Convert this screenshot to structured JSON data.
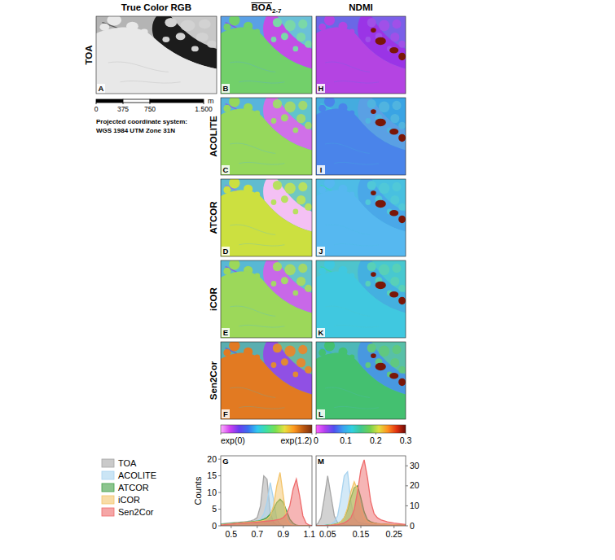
{
  "figure": {
    "column_headers": [
      "True Color RGB",
      {
        "text": "BOA",
        "subscript": "2-7"
      },
      "NDMI"
    ],
    "row_labels": [
      "TOA",
      "ACOLITE",
      "ATCOR",
      "iCOR",
      "Sen2Cor"
    ],
    "panels": {
      "rgb": [
        "A"
      ],
      "boa": [
        "B",
        "C",
        "D",
        "E",
        "F"
      ],
      "ndmi": [
        "H",
        "I",
        "J",
        "K",
        "L"
      ],
      "hist": [
        "G",
        "M"
      ]
    },
    "scale_bar": {
      "unit": "m",
      "range": [
        0,
        1500
      ],
      "ticks": [
        0,
        375,
        750,
        {
          "value": 1500,
          "label": "1.500"
        }
      ]
    },
    "projection": [
      "Projected coordinate system:",
      "WGS 1984 UTM Zone 31N"
    ],
    "colorbars": [
      {
        "range": [
          0,
          1.2
        ],
        "ticks": [
          {
            "value": 0,
            "label": "exp(0)"
          },
          {
            "value": 1.2,
            "label": "exp(1.2)"
          }
        ],
        "colors": [
          "#ffb0ff",
          "#d040f0",
          "#6a3cf0",
          "#3a70f0",
          "#30c8f0",
          "#40e0a0",
          "#7ae050",
          "#e8e040",
          "#ff9a20",
          "#c05a10",
          "#7a3010"
        ]
      },
      {
        "range": [
          0,
          0.3
        ],
        "ticks": [
          0,
          0.1,
          0.2,
          0.3
        ],
        "colors": [
          "#ff60ff",
          "#b040f0",
          "#5050f0",
          "#3aa0f0",
          "#30d0e0",
          "#40c890",
          "#70d050",
          "#e0e040",
          "#ff9020",
          "#e03010",
          "#6a0a05"
        ]
      }
    ]
  },
  "chart_data": [
    {
      "type": "area",
      "xlim": [
        0.42,
        1.12
      ],
      "xticks": [
        0.5,
        0.7,
        0.9,
        1.1
      ],
      "ylim": [
        0,
        21
      ],
      "yticks": [
        0,
        5,
        10,
        15,
        20
      ],
      "ylabel": "Counts",
      "legend": "left",
      "x": [
        0.4,
        0.425,
        0.45,
        0.475,
        0.5,
        0.525,
        0.55,
        0.575,
        0.6,
        0.625,
        0.65,
        0.675,
        0.7,
        0.725,
        0.75,
        0.775,
        0.8,
        0.825,
        0.85,
        0.875,
        0.9,
        0.925,
        0.95,
        0.975,
        1.0,
        1.025,
        1.05,
        1.075,
        1.1,
        1.125,
        1.15
      ],
      "series": [
        {
          "name": "TOA",
          "color": "#a6a6a6",
          "values": [
            0.5,
            0.6,
            0.7,
            0.8,
            0.9,
            1.0,
            1.0,
            1.1,
            1.2,
            1.3,
            1.5,
            1.8,
            2.5,
            6,
            15,
            14,
            4,
            1,
            0.3,
            0.1,
            0,
            0,
            0,
            0,
            0,
            0,
            0,
            0,
            0,
            0,
            0
          ]
        },
        {
          "name": "ACOLITE",
          "color": "#a8d3ef",
          "values": [
            0.3,
            0.4,
            0.5,
            0.6,
            0.7,
            0.8,
            0.9,
            1,
            1,
            1.1,
            1.2,
            1.3,
            1.5,
            2,
            3.5,
            7,
            13,
            8,
            2,
            0.5,
            0.1,
            0,
            0,
            0,
            0,
            0,
            0,
            0,
            0,
            0,
            0
          ]
        },
        {
          "name": "ATCOR",
          "color": "#3f9f45",
          "values": [
            0.3,
            0.4,
            0.5,
            0.6,
            0.7,
            0.8,
            0.9,
            1,
            1,
            1.1,
            1.2,
            1.3,
            1.4,
            1.6,
            2,
            2.5,
            3.5,
            5,
            7,
            8,
            7,
            4.5,
            2,
            0.8,
            0.2,
            0,
            0,
            0,
            0,
            0,
            0
          ]
        },
        {
          "name": "iCOR",
          "color": "#f3c46a",
          "values": [
            0.2,
            0.3,
            0.4,
            0.5,
            0.6,
            0.7,
            0.8,
            0.9,
            1,
            1,
            1.1,
            1.2,
            1.3,
            1.4,
            1.6,
            2,
            3,
            6,
            12,
            16,
            9,
            2,
            0.5,
            0.1,
            0,
            0,
            0,
            0,
            0,
            0,
            0
          ]
        },
        {
          "name": "Sen2Cor",
          "color": "#ee6b6b",
          "values": [
            0.1,
            0.2,
            0.3,
            0.4,
            0.5,
            0.6,
            0.7,
            0.8,
            0.8,
            0.9,
            1,
            1,
            1.1,
            1.2,
            1.3,
            1.4,
            1.5,
            1.6,
            1.8,
            2,
            2.5,
            3.5,
            6,
            11,
            14,
            9,
            3,
            0.8,
            0.2,
            0.05,
            0
          ]
        }
      ]
    },
    {
      "type": "area",
      "xlim": [
        0.015,
        0.285
      ],
      "xticks": [
        0.05,
        0.15,
        0.25
      ],
      "y2lim": [
        0,
        35
      ],
      "y2ticks": [
        0,
        10,
        20,
        30
      ],
      "x": [
        0,
        0.01,
        0.02,
        0.03,
        0.04,
        0.05,
        0.06,
        0.07,
        0.08,
        0.09,
        0.1,
        0.11,
        0.12,
        0.13,
        0.14,
        0.15,
        0.16,
        0.17,
        0.18,
        0.19,
        0.2,
        0.21,
        0.22,
        0.23,
        0.24,
        0.25,
        0.26,
        0.27,
        0.28,
        0.29,
        0.3
      ],
      "series": [
        {
          "name": "TOA",
          "color": "#a6a6a6",
          "axis": "y2",
          "values": [
            0,
            0.2,
            1,
            4,
            14,
            25,
            15,
            5,
            1.5,
            0.9,
            0.7,
            0.6,
            0.5,
            0.4,
            0.3,
            0.3,
            0.2,
            0.2,
            0.2,
            0.1,
            0.1,
            0.1,
            0.1,
            0,
            0,
            0,
            0,
            0,
            0,
            0,
            0
          ]
        },
        {
          "name": "ACOLITE",
          "color": "#a8d3ef",
          "axis": "y2",
          "values": [
            0,
            0,
            0,
            0.1,
            0.3,
            0.6,
            1,
            2,
            5,
            14,
            25,
            27,
            12,
            4,
            2,
            1.5,
            1.2,
            1,
            0.9,
            0.8,
            0.7,
            0.6,
            0.5,
            0.4,
            0.3,
            0.3,
            0.2,
            0.2,
            0.1,
            0.1,
            0.1
          ]
        },
        {
          "name": "ATCOR",
          "color": "#3f9f45",
          "axis": "y2",
          "values": [
            0,
            0,
            0,
            0,
            0.1,
            0.3,
            0.5,
            0.8,
            1.2,
            2,
            4,
            8,
            14,
            19,
            20,
            14,
            7,
            3,
            2,
            1.5,
            1.2,
            1,
            0.9,
            0.8,
            0.7,
            0.6,
            0.5,
            0.4,
            0.3,
            0.3,
            0.2
          ]
        },
        {
          "name": "iCOR",
          "color": "#f3c46a",
          "axis": "y2",
          "values": [
            0,
            0,
            0,
            0,
            0.1,
            0.2,
            0.4,
            0.7,
            1,
            2,
            4,
            9,
            17,
            22,
            18,
            9,
            4,
            2,
            1.5,
            1.2,
            1,
            0.9,
            0.8,
            0.7,
            0.6,
            0.5,
            0.4,
            0.3,
            0.3,
            0.2,
            0.2
          ]
        },
        {
          "name": "Sen2Cor",
          "color": "#ee6b6b",
          "axis": "y2",
          "values": [
            0,
            0,
            0,
            0,
            0,
            0.1,
            0.2,
            0.4,
            0.6,
            1,
            1.5,
            2.5,
            4,
            8,
            17,
            28,
            33,
            24,
            12,
            6,
            4,
            3,
            2.5,
            2,
            1.7,
            1.4,
            1.2,
            1,
            0.8,
            0.6,
            0.5
          ]
        }
      ]
    }
  ]
}
